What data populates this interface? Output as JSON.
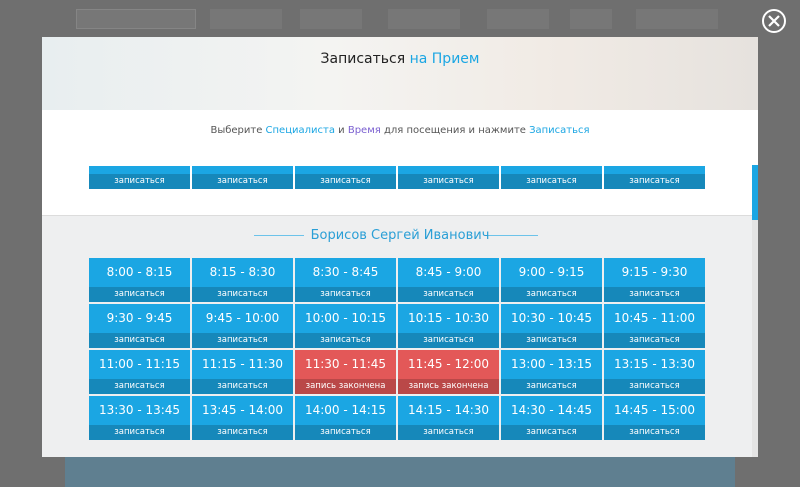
{
  "modal": {
    "title": [
      "Записаться",
      "на Прием"
    ],
    "instruction": [
      "Выберите ",
      "Специалиста",
      " и ",
      "Время",
      " для посещения и нажмите ",
      "Записаться"
    ],
    "previous_doctor": {
      "slots": [
        "записаться",
        "записаться",
        "записаться",
        "записаться",
        "записаться",
        "записаться"
      ]
    },
    "doctor": {
      "name": "Борисов Сергей Иванович",
      "slots": [
        {
          "time": "8:00 - 8:15",
          "status": "записаться",
          "color": "#1ba6e3"
        },
        {
          "time": "8:15 - 8:30",
          "status": "записаться",
          "color": "#1ba6e3"
        },
        {
          "time": "8:30 - 8:45",
          "status": "записаться",
          "color": "#1ba6e3"
        },
        {
          "time": "8:45 - 9:00",
          "status": "записаться",
          "color": "#1ba6e3"
        },
        {
          "time": "9:00 - 9:15",
          "status": "записаться",
          "color": "#1ba6e3"
        },
        {
          "time": "9:15 - 9:30",
          "status": "записаться",
          "color": "#1ba6e3"
        },
        {
          "time": "9:30 - 9:45",
          "status": "записаться",
          "color": "#1ba6e3"
        },
        {
          "time": "9:45 - 10:00",
          "status": "записаться",
          "color": "#1ba6e3"
        },
        {
          "time": "10:00 - 10:15",
          "status": "записаться",
          "color": "#1ba6e3"
        },
        {
          "time": "10:15 - 10:30",
          "status": "записаться",
          "color": "#1ba6e3"
        },
        {
          "time": "10:30 - 10:45",
          "status": "записаться",
          "color": "#1ba6e3"
        },
        {
          "time": "10:45 - 11:00",
          "status": "записаться",
          "color": "#1ba6e3"
        },
        {
          "time": "11:00 - 11:15",
          "status": "записаться",
          "color": "#1ba6e3"
        },
        {
          "time": "11:15 - 11:30",
          "status": "записаться",
          "color": "#1ba6e3"
        },
        {
          "time": "11:30 - 11:45",
          "status": "запись закончена",
          "color": "#e35858"
        },
        {
          "time": "11:45 - 12:00",
          "status": "запись закончена",
          "color": "#e35858"
        },
        {
          "time": "13:00 - 13:15",
          "status": "записаться",
          "color": "#1ba6e3"
        },
        {
          "time": "13:15 - 13:30",
          "status": "записаться",
          "color": "#1ba6e3"
        },
        {
          "time": "13:30 - 13:45",
          "status": "записаться",
          "color": "#1ba6e3"
        },
        {
          "time": "13:45 - 14:00",
          "status": "записаться",
          "color": "#1ba6e3"
        },
        {
          "time": "14:00 - 14:15",
          "status": "записаться",
          "color": "#1ba6e3"
        },
        {
          "time": "14:15 - 14:30",
          "status": "записаться",
          "color": "#1ba6e3"
        },
        {
          "time": "14:30 - 14:45",
          "status": "записаться",
          "color": "#1ba6e3"
        },
        {
          "time": "14:45 - 15:00",
          "status": "записаться",
          "color": "#1ba6e3"
        }
      ]
    }
  }
}
